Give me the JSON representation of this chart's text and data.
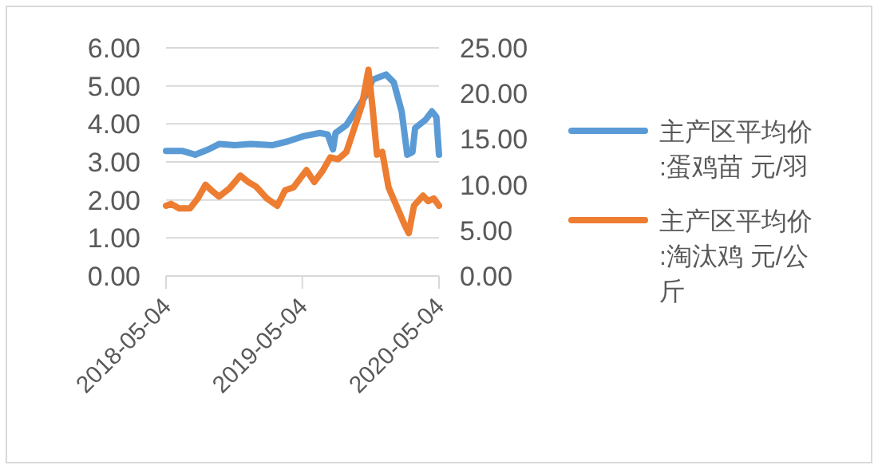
{
  "chart_data": {
    "type": "line",
    "grid": "y",
    "legend": "right",
    "line_style": "solid",
    "xlim": [
      "2018-05-04",
      "2020-05-04"
    ],
    "xticks": [
      "2018-05-04",
      "2019-05-04",
      "2020-05-04"
    ],
    "ylim": [
      0,
      6
    ],
    "yticks": [
      {
        "value": 0,
        "label": "0.00"
      },
      {
        "value": 1,
        "label": "1.00"
      },
      {
        "value": 2,
        "label": "2.00"
      },
      {
        "value": 3,
        "label": "3.00"
      },
      {
        "value": 4,
        "label": "4.00"
      },
      {
        "value": 5,
        "label": "5.00"
      },
      {
        "value": 6,
        "label": "6.00"
      }
    ],
    "y2lim": [
      0,
      25
    ],
    "y2ticks": [
      {
        "value": 0,
        "label": "0.00"
      },
      {
        "value": 5,
        "label": "5.00"
      },
      {
        "value": 10,
        "label": "10.00"
      },
      {
        "value": 15,
        "label": "15.00"
      },
      {
        "value": 20,
        "label": "20.00"
      },
      {
        "value": 25,
        "label": "25.00"
      }
    ],
    "series": [
      {
        "name": "主产区平均价:蛋鸡苗 元/羽",
        "color": "#5b9bd5",
        "x": [
          "2018-05-04",
          "2018-06-16",
          "2018-07-21",
          "2018-08-26",
          "2018-09-23",
          "2018-11-04",
          "2018-12-17",
          "2019-02-12",
          "2019-03-26",
          "2019-05-08",
          "2019-06-20",
          "2019-07-11",
          "2019-07-25",
          "2019-08-01",
          "2019-08-30",
          "2019-09-27",
          "2019-10-25",
          "2019-11-08",
          "2019-12-14",
          "2020-01-04",
          "2020-01-25",
          "2020-02-09",
          "2020-02-23",
          "2020-03-01",
          "2020-03-29",
          "2020-04-15",
          "2020-04-27",
          "2020-05-04"
        ],
        "values": [
          3.29,
          3.29,
          3.19,
          3.33,
          3.47,
          3.44,
          3.47,
          3.44,
          3.54,
          3.68,
          3.76,
          3.72,
          3.33,
          3.76,
          3.97,
          4.39,
          4.81,
          5.16,
          5.3,
          5.09,
          4.33,
          3.19,
          3.26,
          3.89,
          4.11,
          4.33,
          4.18,
          3.19
        ]
      },
      {
        "name": "主产区平均价:淘汰鸡 元/公斤",
        "color": "#ed7d31",
        "axis": "y2",
        "x": [
          "2018-05-04",
          "2018-05-18",
          "2018-06-08",
          "2018-07-07",
          "2018-07-28",
          "2018-08-18",
          "2018-09-02",
          "2018-09-23",
          "2018-10-21",
          "2018-11-19",
          "2018-12-10",
          "2018-12-31",
          "2019-01-29",
          "2019-02-26",
          "2019-03-19",
          "2019-04-10",
          "2019-05-15",
          "2019-06-05",
          "2019-06-27",
          "2019-07-18",
          "2019-08-08",
          "2019-08-30",
          "2019-09-20",
          "2019-10-11",
          "2019-10-28",
          "2019-11-08",
          "2019-11-20",
          "2019-12-04",
          "2019-12-21",
          "2020-01-11",
          "2020-02-02",
          "2020-02-13",
          "2020-02-27",
          "2020-03-22",
          "2020-04-05",
          "2020-04-20",
          "2020-05-04"
        ],
        "values": [
          7.7,
          7.9,
          7.4,
          7.4,
          8.5,
          10.0,
          9.4,
          8.7,
          9.6,
          11.0,
          10.3,
          9.8,
          8.5,
          7.7,
          9.4,
          9.7,
          11.6,
          10.3,
          11.5,
          13.0,
          12.8,
          13.6,
          16.2,
          18.8,
          22.6,
          18.5,
          13.3,
          13.6,
          9.7,
          7.7,
          5.6,
          4.7,
          7.7,
          8.8,
          8.2,
          8.5,
          7.7
        ]
      }
    ]
  }
}
